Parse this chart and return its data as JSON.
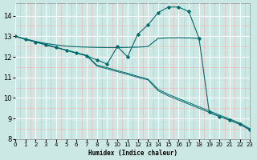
{
  "title": "",
  "xlabel": "Humidex (Indice chaleur)",
  "ylabel": "",
  "bg_color": "#cce8e4",
  "grid_major_color": "#ffffff",
  "grid_minor_color": "#f0c8c8",
  "line_color": "#006b6b",
  "xlim": [
    0,
    23
  ],
  "ylim": [
    8,
    14.6
  ],
  "xticks": [
    0,
    1,
    2,
    3,
    4,
    5,
    6,
    7,
    8,
    9,
    10,
    11,
    12,
    13,
    14,
    15,
    16,
    17,
    18,
    19,
    20,
    21,
    22,
    23
  ],
  "yticks": [
    8,
    9,
    10,
    11,
    12,
    13,
    14
  ],
  "line_diag1_x": [
    0,
    1,
    2,
    3,
    4,
    5,
    6,
    7,
    8,
    9,
    10,
    11,
    12,
    13,
    14,
    15,
    16,
    17,
    18,
    19,
    20,
    21,
    22,
    23
  ],
  "line_diag1_y": [
    13.0,
    12.85,
    12.72,
    12.58,
    12.45,
    12.32,
    12.18,
    12.05,
    11.55,
    11.42,
    11.28,
    11.15,
    11.0,
    10.88,
    10.35,
    10.1,
    9.9,
    9.7,
    9.5,
    9.3,
    9.1,
    8.92,
    8.72,
    8.45
  ],
  "line_diag2_x": [
    0,
    1,
    2,
    3,
    4,
    5,
    6,
    7,
    8,
    9,
    10,
    11,
    12,
    13,
    14,
    15,
    16,
    17,
    18,
    19,
    20,
    21,
    22,
    23
  ],
  "line_diag2_y": [
    13.0,
    12.87,
    12.73,
    12.6,
    12.47,
    12.33,
    12.2,
    12.07,
    11.6,
    11.47,
    11.33,
    11.2,
    11.05,
    10.92,
    10.42,
    10.17,
    9.97,
    9.77,
    9.57,
    9.37,
    9.17,
    8.98,
    8.78,
    8.5
  ],
  "line_wavy_x": [
    0,
    1,
    2,
    3,
    4,
    5,
    6,
    7,
    8,
    9,
    10,
    11,
    12,
    13,
    14,
    15,
    16,
    17,
    18,
    19,
    20,
    21,
    22,
    23
  ],
  "line_wavy_y": [
    13.0,
    12.85,
    12.72,
    12.58,
    12.45,
    12.32,
    12.18,
    12.05,
    11.85,
    11.65,
    12.5,
    12.0,
    13.1,
    13.55,
    14.15,
    14.42,
    14.42,
    14.2,
    12.9,
    9.3,
    9.1,
    8.92,
    8.72,
    8.45
  ],
  "line_flat_x": [
    0,
    1,
    2,
    3,
    4,
    5,
    6,
    7,
    8,
    9,
    10,
    11,
    12,
    13,
    14,
    15,
    16,
    17,
    18
  ],
  "line_flat_y": [
    13.0,
    12.87,
    12.75,
    12.65,
    12.58,
    12.52,
    12.49,
    12.47,
    12.46,
    12.45,
    12.45,
    12.46,
    12.47,
    12.5,
    12.9,
    12.92,
    12.93,
    12.92,
    12.9
  ]
}
